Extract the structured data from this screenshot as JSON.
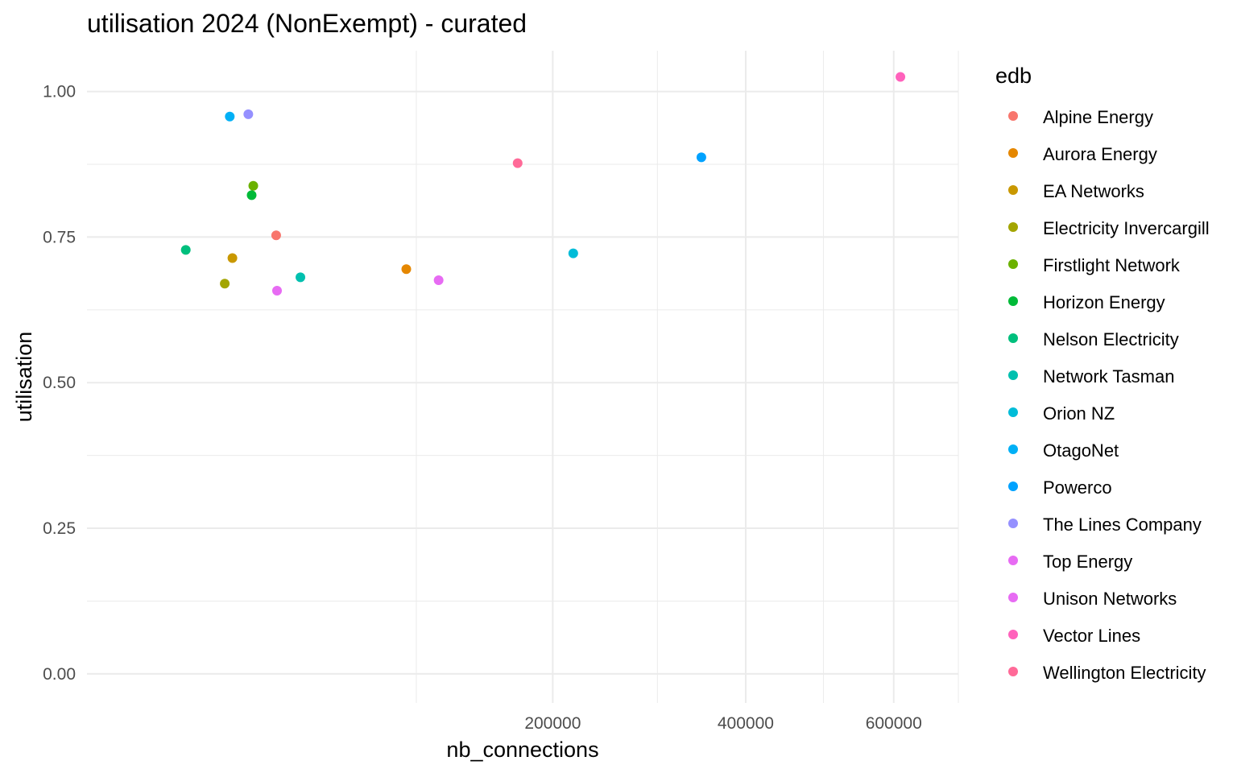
{
  "chart_data": {
    "type": "scatter",
    "title": "utilisation 2024 (NonExempt) - curated",
    "xlabel": "nb_connections",
    "ylabel": "utilisation",
    "x_scale": "sqrt",
    "xlim": [
      0,
      700000
    ],
    "ylim": [
      -0.05,
      1.07
    ],
    "x_ticks": [
      {
        "value": 200000,
        "label": "200000"
      },
      {
        "value": 400000,
        "label": "400000"
      },
      {
        "value": 600000,
        "label": "600000"
      }
    ],
    "x_minor": [
      100000,
      300000,
      500000,
      700000
    ],
    "y_ticks": [
      {
        "value": 0,
        "label": "0.00"
      },
      {
        "value": 0.25,
        "label": "0.25"
      },
      {
        "value": 0.5,
        "label": "0.50"
      },
      {
        "value": 0.75,
        "label": "0.75"
      },
      {
        "value": 1.0,
        "label": "1.00"
      }
    ],
    "y_minor": [
      0.125,
      0.375,
      0.625,
      0.875
    ],
    "grid": true,
    "legend_title": "edb",
    "legend_position": "right",
    "series": [
      {
        "name": "Alpine Energy",
        "color": "#F8766D",
        "x": 33000,
        "y": 0.753
      },
      {
        "name": "Aurora Energy",
        "color": "#E58700",
        "x": 94000,
        "y": 0.695
      },
      {
        "name": "EA Networks",
        "color": "#C99800",
        "x": 19500,
        "y": 0.714
      },
      {
        "name": "Electricity Invercargill",
        "color": "#A3A500",
        "x": 17500,
        "y": 0.67
      },
      {
        "name": "Firstlight Network",
        "color": "#6BB100",
        "x": 25500,
        "y": 0.838
      },
      {
        "name": "Horizon Energy",
        "color": "#00BA38",
        "x": 25000,
        "y": 0.822
      },
      {
        "name": "Nelson Electricity",
        "color": "#00BF7D",
        "x": 9000,
        "y": 0.728
      },
      {
        "name": "Network Tasman",
        "color": "#00C0AF",
        "x": 42000,
        "y": 0.681
      },
      {
        "name": "Orion NZ",
        "color": "#00BCD8",
        "x": 218000,
        "y": 0.722
      },
      {
        "name": "OtagoNet",
        "color": "#00B0F6",
        "x": 18800,
        "y": 0.957
      },
      {
        "name": "Powerco",
        "color": "#00A2FF",
        "x": 348000,
        "y": 0.887
      },
      {
        "name": "The Lines Company",
        "color": "#9590FF",
        "x": 24000,
        "y": 0.961
      },
      {
        "name": "Top Energy",
        "color": "#E76BF3",
        "x": 33300,
        "y": 0.658
      },
      {
        "name": "Unison Networks",
        "color": "#E76BF3",
        "x": 114000,
        "y": 0.676
      },
      {
        "name": "Vector Lines",
        "color": "#FF62BC",
        "x": 610000,
        "y": 1.025
      },
      {
        "name": "Wellington Electricity",
        "color": "#FF6A98",
        "x": 171000,
        "y": 0.877
      }
    ]
  }
}
